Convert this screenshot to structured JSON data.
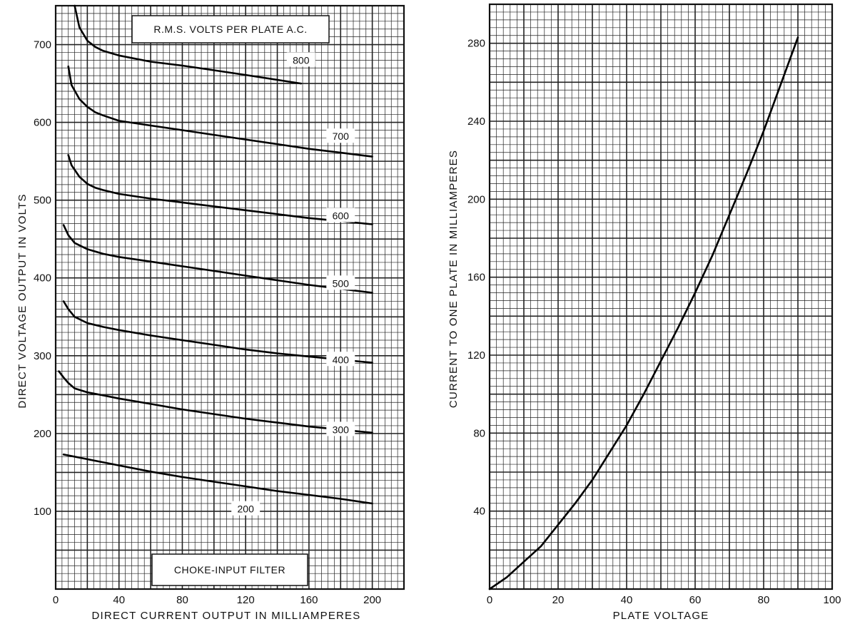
{
  "chart_data": [
    {
      "type": "line",
      "title": "",
      "xlabel": "DIRECT CURRENT OUTPUT IN MILLIAMPERES",
      "ylabel": "DIRECT VOLTAGE OUTPUT IN VOLTS",
      "xlim": [
        0,
        220
      ],
      "ylim": [
        0,
        750
      ],
      "xticks": [
        0,
        40,
        80,
        120,
        160,
        200
      ],
      "yticks": [
        100,
        200,
        300,
        400,
        500,
        600,
        700
      ],
      "origin_label": "0",
      "grid": true,
      "legend_title": "R.M.S. VOLTS PER PLATE A.C.",
      "annotation": "CHOKE-INPUT FILTER",
      "series": [
        {
          "name": "800",
          "x": [
            12,
            15,
            20,
            25,
            30,
            40,
            60,
            80,
            100,
            120,
            155
          ],
          "y": [
            750,
            722,
            705,
            697,
            692,
            686,
            678,
            673,
            667,
            661,
            650
          ]
        },
        {
          "name": "700",
          "x": [
            8,
            10,
            15,
            20,
            25,
            30,
            40,
            60,
            80,
            100,
            120,
            140,
            160,
            180,
            200
          ],
          "y": [
            672,
            648,
            630,
            620,
            613,
            609,
            602,
            596,
            590,
            584,
            578,
            572,
            566,
            561,
            556
          ]
        },
        {
          "name": "600",
          "x": [
            8,
            10,
            15,
            20,
            25,
            30,
            40,
            60,
            80,
            100,
            120,
            140,
            160,
            180,
            200
          ],
          "y": [
            558,
            545,
            530,
            521,
            516,
            513,
            508,
            502,
            497,
            492,
            487,
            482,
            477,
            473,
            469
          ]
        },
        {
          "name": "500",
          "x": [
            5,
            8,
            12,
            20,
            30,
            40,
            60,
            80,
            100,
            120,
            140,
            160,
            180,
            200
          ],
          "y": [
            468,
            455,
            445,
            437,
            431,
            427,
            421,
            415,
            409,
            403,
            397,
            391,
            386,
            381
          ]
        },
        {
          "name": "400",
          "x": [
            5,
            8,
            12,
            20,
            30,
            40,
            60,
            80,
            100,
            120,
            140,
            160,
            180,
            200
          ],
          "y": [
            370,
            360,
            350,
            342,
            337,
            333,
            326,
            320,
            314,
            308,
            303,
            299,
            295,
            291
          ]
        },
        {
          "name": "300",
          "x": [
            2,
            5,
            8,
            12,
            20,
            30,
            40,
            60,
            80,
            100,
            120,
            140,
            160,
            180,
            200
          ],
          "y": [
            280,
            272,
            265,
            258,
            253,
            249,
            245,
            238,
            231,
            225,
            219,
            214,
            209,
            205,
            201
          ]
        },
        {
          "name": "200",
          "x": [
            5,
            20,
            40,
            60,
            80,
            100,
            120,
            140,
            160,
            180,
            200
          ],
          "y": [
            173,
            167,
            159,
            151,
            144,
            138,
            132,
            126,
            121,
            116,
            110
          ]
        }
      ]
    },
    {
      "type": "line",
      "title": "",
      "xlabel": "PLATE VOLTAGE",
      "ylabel": "CURRENT TO ONE PLATE IN MILLIAMPERES",
      "xlim": [
        0,
        100
      ],
      "ylim": [
        0,
        300
      ],
      "xticks": [
        0,
        20,
        40,
        60,
        80,
        100
      ],
      "yticks": [
        40,
        80,
        120,
        160,
        200,
        240,
        280
      ],
      "origin_label": "0",
      "grid": true,
      "series": [
        {
          "x": [
            0,
            5,
            10,
            15,
            20,
            25,
            30,
            35,
            40,
            45,
            50,
            55,
            60,
            65,
            70,
            75,
            80,
            85,
            90
          ],
          "y": [
            0,
            6,
            14,
            22,
            33,
            44,
            56,
            70,
            84,
            100,
            117,
            134,
            152,
            171,
            192,
            213,
            235,
            259,
            283
          ]
        }
      ]
    }
  ]
}
